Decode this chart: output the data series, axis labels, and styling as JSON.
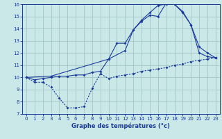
{
  "title": "Graphe des températures (°c)",
  "bg_color": "#cbe8e8",
  "line_color": "#1a3a9a",
  "grid_color": "#9dbfbf",
  "xlim": [
    -0.5,
    23.5
  ],
  "ylim": [
    7,
    16
  ],
  "xticks": [
    0,
    1,
    2,
    3,
    4,
    5,
    6,
    7,
    8,
    9,
    10,
    11,
    12,
    13,
    14,
    15,
    16,
    17,
    18,
    19,
    20,
    21,
    22,
    23
  ],
  "yticks": [
    7,
    8,
    9,
    10,
    11,
    12,
    13,
    14,
    15,
    16
  ],
  "line1_x": [
    0,
    1,
    2,
    3,
    4,
    5,
    6,
    7,
    8,
    9,
    10,
    11,
    12,
    13,
    14,
    15,
    16,
    17,
    18,
    19,
    20,
    21,
    22,
    23
  ],
  "line1_y": [
    10.0,
    9.6,
    9.6,
    9.2,
    8.3,
    7.5,
    7.5,
    7.6,
    9.1,
    10.3,
    9.9,
    10.1,
    10.2,
    10.3,
    10.5,
    10.6,
    10.7,
    10.8,
    11.0,
    11.1,
    11.3,
    11.4,
    11.5,
    11.6
  ],
  "line2_x": [
    0,
    1,
    2,
    3,
    4,
    5,
    6,
    7,
    8,
    9,
    10,
    11,
    12,
    13,
    14,
    15,
    16,
    17,
    18,
    19,
    20,
    21,
    22,
    23
  ],
  "line2_y": [
    10.0,
    9.8,
    9.9,
    10.0,
    10.1,
    10.1,
    10.2,
    10.2,
    10.4,
    10.5,
    11.5,
    12.8,
    12.8,
    13.9,
    14.6,
    15.1,
    15.0,
    16.1,
    16.0,
    15.3,
    14.3,
    12.0,
    11.7,
    11.6
  ],
  "line3_x": [
    0,
    3,
    10,
    12,
    13,
    14,
    15,
    16,
    17,
    18,
    19,
    20,
    21,
    22,
    23
  ],
  "line3_y": [
    10.0,
    10.1,
    11.5,
    12.2,
    13.9,
    14.7,
    15.3,
    15.9,
    16.0,
    16.0,
    15.4,
    14.3,
    12.5,
    12.0,
    11.6
  ]
}
